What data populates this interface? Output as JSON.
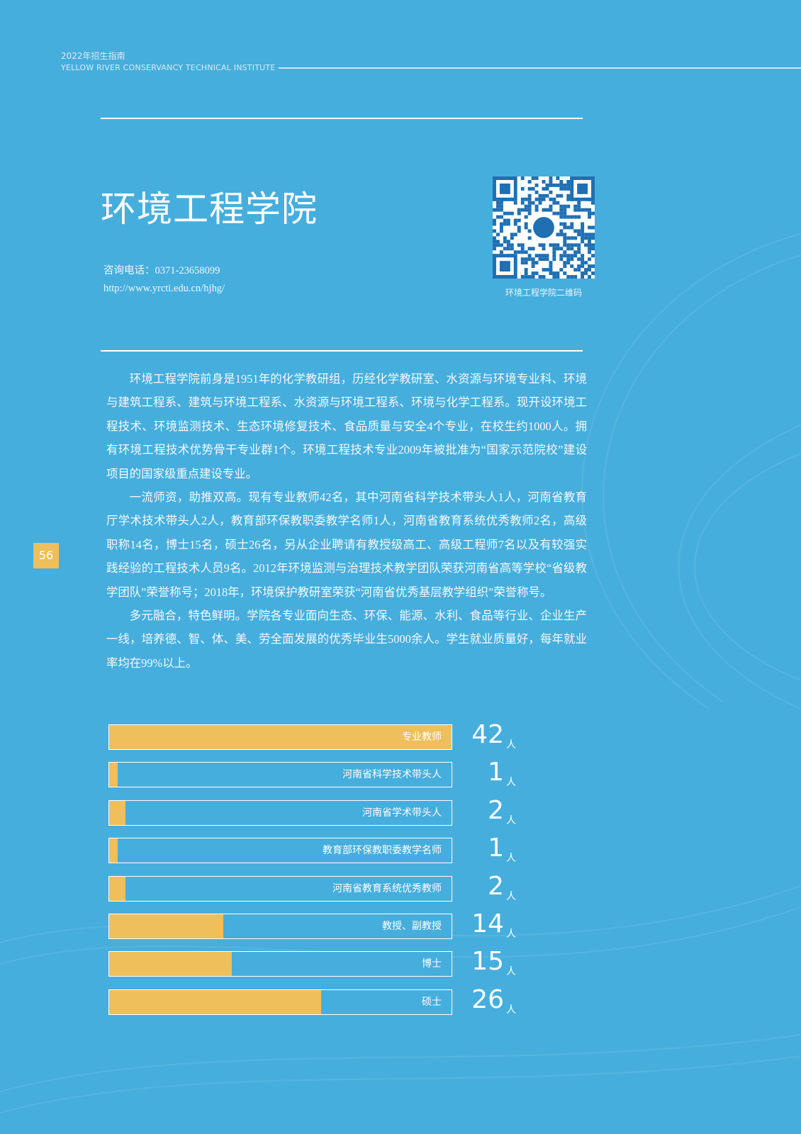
{
  "header": {
    "guide_title": "2022年招生指南",
    "institute_en": "YELLOW RIVER CONSERVANCY TECHNICAL INSTITUTE"
  },
  "college": {
    "title": "环境工程学院",
    "phone": "咨询电话：0371-23658099",
    "url": "http://www.yrcti.edu.cn/hjhg/",
    "qr_caption": "环境工程学院二维码"
  },
  "page_number": "56",
  "paragraphs": [
    "环境工程学院前身是1951年的化学教研组，历经化学教研室、水资源与环境专业科、环境与建筑工程系、建筑与环境工程系、水资源与环境工程系、环境与化学工程系。现开设环境工程技术、环境监测技术、生态环境修复技术、食品质量与安全4个专业，在校生约1000人。拥有环境工程技术优势骨干专业群1个。环境工程技术专业2009年被批准为“国家示范院校”建设项目的国家级重点建设专业。",
    "一流师资，助推双高。现有专业教师42名，其中河南省科学技术带头人1人，河南省教育厅学术技术带头人2人，教育部环保教职委教学名师1人，河南省教育系统优秀教师2名，高级职称14名，博士15名，硕士26名，另从企业聘请有教授级高工、高级工程师7名以及有较强实践经验的工程技术人员9名。2012年环境监测与治理技术教学团队荣获河南省高等学校“省级教学团队”荣誉称号；2018年，环境保护教研室荣获“河南省优秀基层教学组织”荣誉称号。",
    "多元融合，特色鲜明。学院各专业面向生态、环保、能源、水利、食品等行业、企业生产一线，培养德、智、体、美、劳全面发展的优秀毕业生5000余人。学生就业质量好，每年就业率均在99%以上。"
  ],
  "chart_data": {
    "type": "bar",
    "orientation": "horizontal",
    "unit": "人",
    "categories": [
      "专业教师",
      "河南省科学技术带头人",
      "河南省学术带头人",
      "教育部环保教职委教学名师",
      "河南省教育系统优秀教师",
      "教授、副教授",
      "博士",
      "硕士"
    ],
    "values": [
      42,
      1,
      2,
      1,
      2,
      14,
      15,
      26
    ],
    "xlim": [
      0,
      42
    ],
    "value_labels": [
      "42",
      "1",
      "2",
      "1",
      "2",
      "14",
      "15",
      "26"
    ],
    "colors": {
      "fill": "#eebf5a",
      "background": "#46aedd",
      "border": "#ffffff"
    }
  },
  "colors": {
    "page_background": "#46aedd",
    "accent": "#eebf5a"
  }
}
